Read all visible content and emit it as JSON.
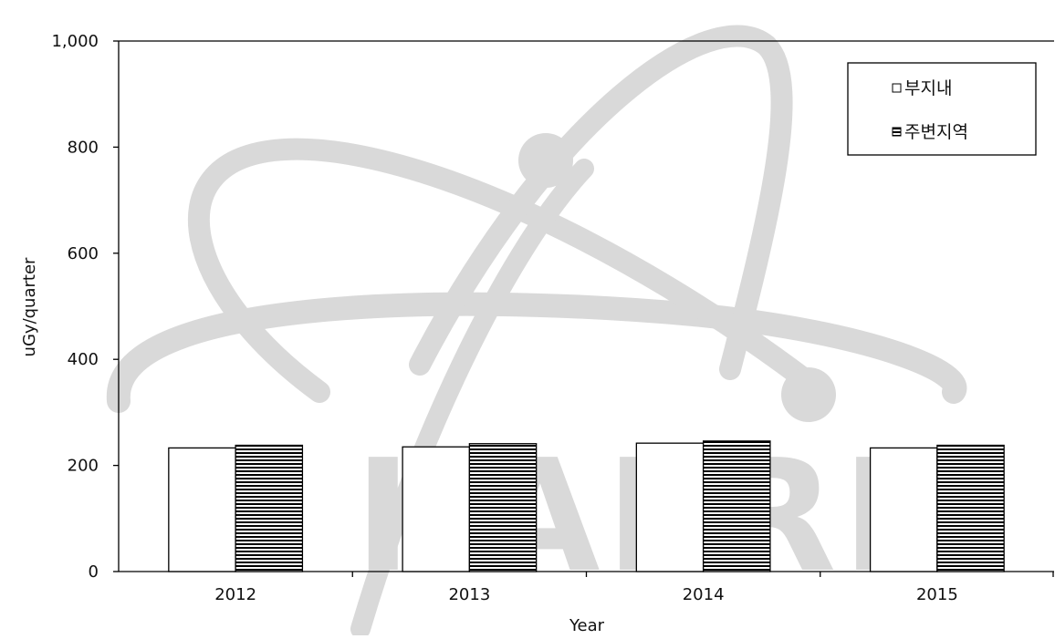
{
  "watermark": {
    "text": "KAERI"
  },
  "chart_data": {
    "type": "bar",
    "categories": [
      "2012",
      "2013",
      "2014",
      "2015"
    ],
    "series": [
      {
        "name": "부지내",
        "values": [
          233,
          235,
          242,
          233
        ],
        "fill": "plain"
      },
      {
        "name": "주변지역",
        "values": [
          238,
          241,
          246,
          238
        ],
        "fill": "hatched"
      }
    ],
    "xlabel": "Year",
    "ylabel": "uGy/quarter",
    "ylim": [
      0,
      1000
    ],
    "yticks": [
      0,
      200,
      400,
      600,
      800,
      1000
    ],
    "ytick_labels": [
      "0",
      "200",
      "400",
      "600",
      "800",
      "1,000"
    ],
    "grid": false,
    "legend_position": "top-right",
    "colors": {
      "bar_stroke": "#000000",
      "bar_plain_fill": "#ffffff",
      "hatch": "#000000",
      "watermark": "#d9d9d9"
    }
  }
}
